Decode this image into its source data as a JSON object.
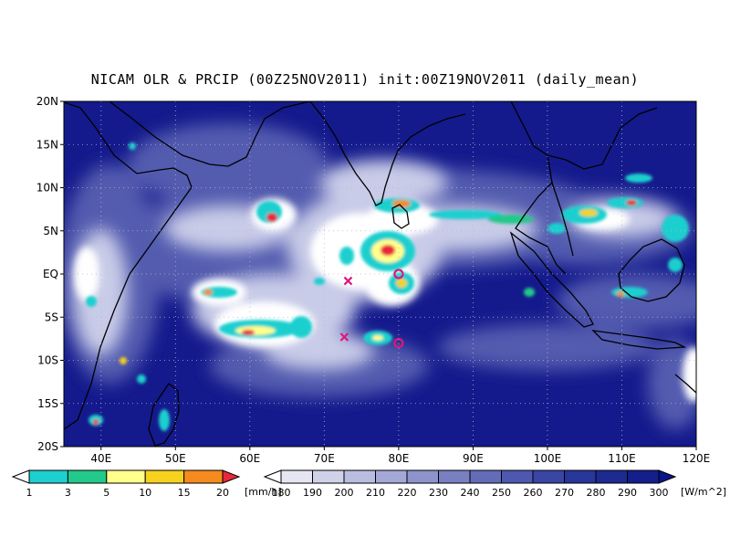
{
  "title": "NICAM OLR & PRCIP (00Z25NOV2011) init:00Z19NOV2011 (daily_mean)",
  "colors": {
    "ocean_deep": "#141a8c",
    "cloud": "#ffffff",
    "coast": "#000000"
  },
  "chart_data": {
    "type": "heatmap",
    "title": "NICAM OLR & PRCIP (00Z25NOV2011) init:00Z19NOV2011 (daily_mean)",
    "xlim": [
      35,
      120
    ],
    "ylim": [
      -20,
      20
    ],
    "x_ticks": [
      {
        "value": 40,
        "label": "40E"
      },
      {
        "value": 50,
        "label": "50E"
      },
      {
        "value": 60,
        "label": "60E"
      },
      {
        "value": 70,
        "label": "70E"
      },
      {
        "value": 80,
        "label": "80E"
      },
      {
        "value": 90,
        "label": "90E"
      },
      {
        "value": 100,
        "label": "100E"
      },
      {
        "value": 110,
        "label": "110E"
      },
      {
        "value": 120,
        "label": "120E"
      }
    ],
    "y_ticks": [
      {
        "value": 20,
        "label": "20N"
      },
      {
        "value": 15,
        "label": "15N"
      },
      {
        "value": 10,
        "label": "10N"
      },
      {
        "value": 5,
        "label": "5N"
      },
      {
        "value": 0,
        "label": "EQ"
      },
      {
        "value": -5,
        "label": "5S"
      },
      {
        "value": -10,
        "label": "10S"
      },
      {
        "value": -15,
        "label": "15S"
      },
      {
        "value": -20,
        "label": "20S"
      }
    ],
    "grid": true,
    "precip_scale": {
      "unit": "[mm/h]",
      "levels": [
        "1",
        "3",
        "5",
        "10",
        "15",
        "20"
      ],
      "colors": [
        "#ffffff",
        "#1ecfcf",
        "#22c98a",
        "#ffff8c",
        "#f6d21e",
        "#f58a1e",
        "#e8283a"
      ]
    },
    "olr_scale": {
      "unit": "[W/m^2]",
      "levels": [
        "180",
        "190",
        "200",
        "210",
        "220",
        "230",
        "240",
        "250",
        "260",
        "270",
        "280",
        "290",
        "300"
      ],
      "colors": [
        "#ffffff",
        "#e6e6f2",
        "#d0d2ea",
        "#b9bde0",
        "#a3a8d6",
        "#8d94cc",
        "#7880c2",
        "#636cb8",
        "#4e58ae",
        "#3a45a4",
        "#283599",
        "#1d2a92",
        "#141f8c",
        "#0c168a"
      ]
    },
    "markers": [
      {
        "type": "x",
        "lon": 73.2,
        "lat": -0.8
      },
      {
        "type": "x",
        "lon": 72.7,
        "lat": -7.3
      },
      {
        "type": "circle",
        "lon": 80.0,
        "lat": 0.0
      },
      {
        "type": "circle",
        "lon": 80.0,
        "lat": -8.0
      }
    ]
  }
}
